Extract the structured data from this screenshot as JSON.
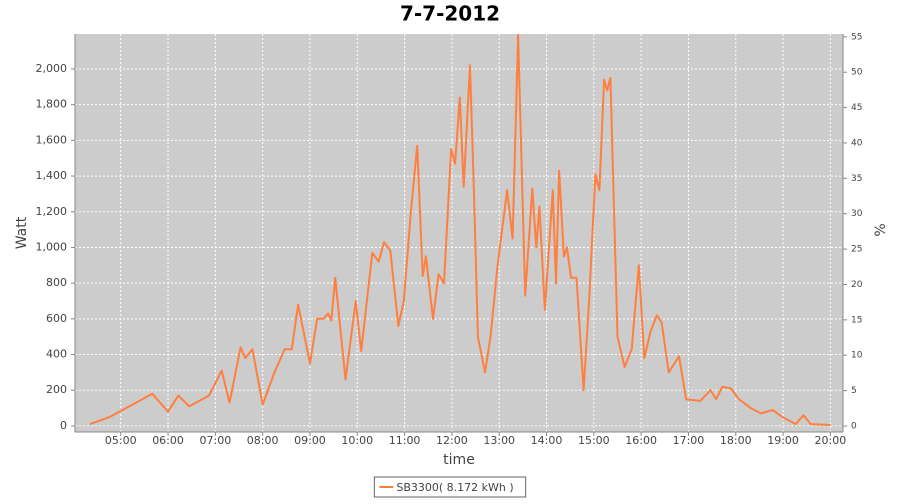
{
  "chart_data": {
    "type": "line",
    "title": "7-7-2012",
    "xlabel": "time",
    "ylabel": "Watt",
    "y2label": "%",
    "x": [
      "04:21",
      "04:46",
      "05:40",
      "06:00",
      "06:13",
      "06:27",
      "06:52",
      "07:08",
      "07:18",
      "07:32",
      "07:38",
      "07:47",
      "08:00",
      "08:15",
      "08:28",
      "08:37",
      "08:45",
      "09:00",
      "09:09",
      "09:17",
      "09:23",
      "09:27",
      "09:32",
      "09:45",
      "09:58",
      "10:05",
      "10:19",
      "10:27",
      "10:34",
      "10:42",
      "10:52",
      "10:59",
      "11:08",
      "11:16",
      "11:23",
      "11:27",
      "11:36",
      "11:43",
      "11:50",
      "11:59",
      "12:04",
      "12:10",
      "12:15",
      "12:23",
      "12:28",
      "12:33",
      "12:42",
      "12:49",
      "12:58",
      "13:10",
      "13:17",
      "13:24",
      "13:33",
      "13:42",
      "13:47",
      "13:51",
      "13:58",
      "14:08",
      "14:12",
      "14:16",
      "14:22",
      "14:26",
      "14:31",
      "14:38",
      "14:47",
      "14:54",
      "15:02",
      "15:07",
      "15:13",
      "15:17",
      "15:21",
      "15:30",
      "15:39",
      "15:48",
      "15:57",
      "16:04",
      "16:12",
      "16:20",
      "16:26",
      "16:35",
      "16:48",
      "16:57",
      "17:15",
      "17:28",
      "17:35",
      "17:43",
      "17:54",
      "18:04",
      "18:19",
      "18:32",
      "18:47",
      "18:59",
      "19:16",
      "19:26",
      "19:35",
      "20:00"
    ],
    "series": [
      {
        "name": "SB3300( 8.172 kWh )",
        "color": "#ff7f3f",
        "values": [
          10,
          50,
          180,
          80,
          170,
          110,
          170,
          310,
          130,
          440,
          380,
          430,
          120,
          300,
          430,
          430,
          680,
          350,
          600,
          600,
          630,
          590,
          830,
          260,
          700,
          420,
          970,
          920,
          1030,
          980,
          560,
          700,
          1200,
          1570,
          840,
          950,
          600,
          850,
          800,
          1550,
          1470,
          1840,
          1340,
          2020,
          1300,
          500,
          300,
          500,
          900,
          1320,
          1050,
          2190,
          730,
          1330,
          1000,
          1230,
          650,
          1320,
          800,
          1430,
          950,
          1000,
          830,
          830,
          200,
          700,
          1410,
          1320,
          1940,
          1880,
          1950,
          500,
          330,
          430,
          900,
          380,
          530,
          620,
          580,
          300,
          390,
          150,
          140,
          200,
          150,
          220,
          210,
          150,
          100,
          70,
          90,
          50,
          10,
          60,
          10,
          5
        ]
      }
    ],
    "xlim": [
      "04:02",
      "20:16"
    ],
    "xticks": [
      "05:00",
      "06:00",
      "07:00",
      "08:00",
      "09:00",
      "10:00",
      "11:00",
      "12:00",
      "13:00",
      "14:00",
      "15:00",
      "16:00",
      "17:00",
      "18:00",
      "19:00",
      "20:00"
    ],
    "ylim": [
      -34,
      2196
    ],
    "yticks": [
      0,
      200,
      400,
      600,
      800,
      {
        "value": 1000,
        "label": "1,000"
      },
      {
        "value": 1200,
        "label": "1,200"
      },
      {
        "value": 1400,
        "label": "1,400"
      },
      {
        "value": 1600,
        "label": "1,600"
      },
      {
        "value": 1800,
        "label": "1,800"
      },
      {
        "value": 2000,
        "label": "2,000"
      }
    ],
    "y2lim": [
      -0.85,
      55.4
    ],
    "y2ticks": [
      0,
      5,
      10,
      15,
      20,
      25,
      30,
      35,
      40,
      45,
      50,
      55
    ],
    "grid": true
  }
}
